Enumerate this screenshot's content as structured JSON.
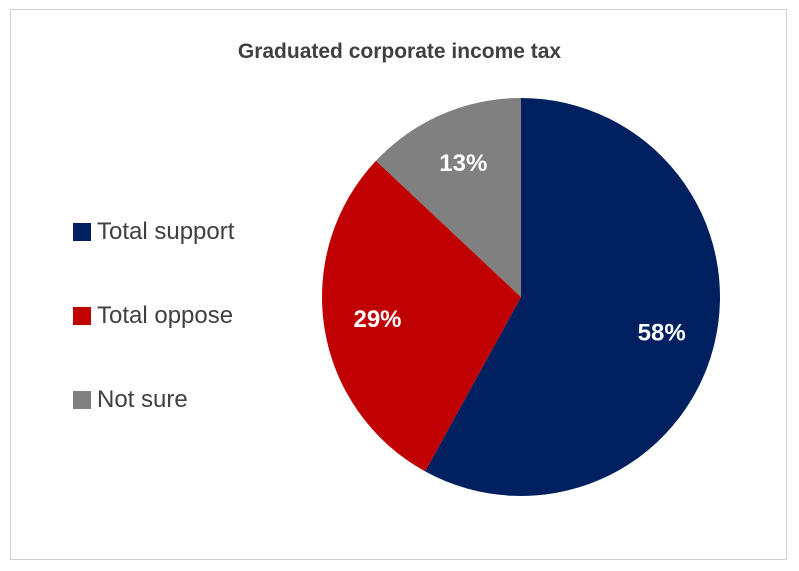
{
  "chart_data": {
    "type": "pie",
    "title": "Graduated corporate income tax",
    "categories": [
      "Total support",
      "Total oppose",
      "Not sure"
    ],
    "values": [
      58,
      29,
      13
    ],
    "value_labels": [
      "58%",
      "29%",
      "13%"
    ],
    "colors": [
      "#002060",
      "#c00000",
      "#808080"
    ],
    "legend_position": "left",
    "label_color": "#ffffff"
  }
}
